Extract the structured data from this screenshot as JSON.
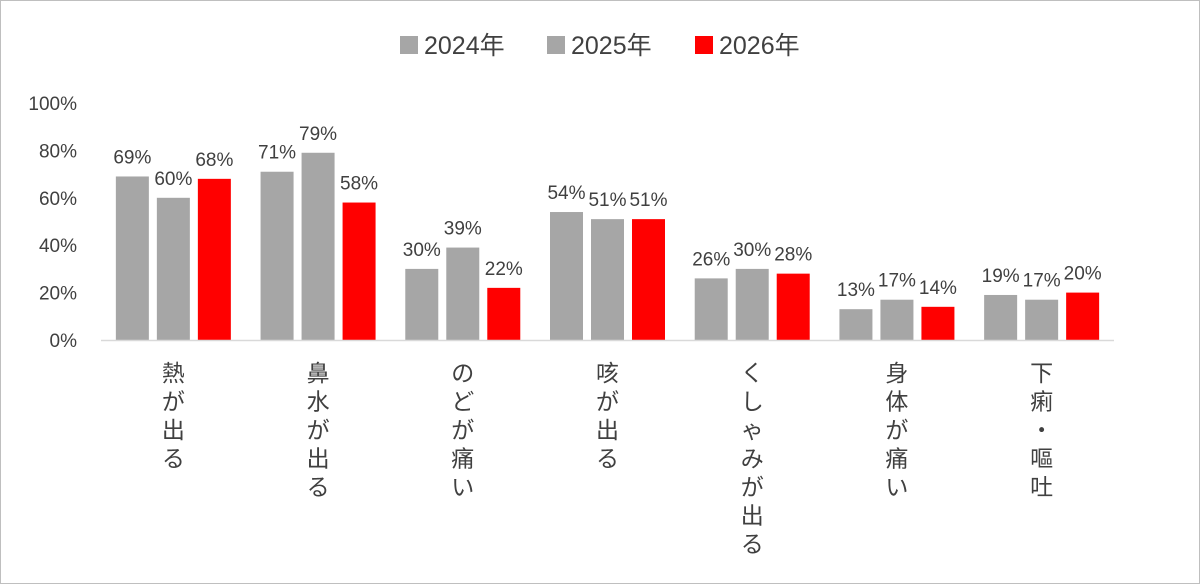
{
  "chart_data": {
    "type": "bar",
    "categories": [
      "熱が出る",
      "鼻水が出る",
      "のどが痛い",
      "咳が出る",
      "くしゃみが出る",
      "身体が痛い",
      "下痢・嘔吐"
    ],
    "series": [
      {
        "name": "2024年",
        "color": "#a6a6a6",
        "values": [
          69,
          71,
          30,
          54,
          26,
          13,
          19
        ]
      },
      {
        "name": "2025年",
        "color": "#a6a6a6",
        "values": [
          60,
          79,
          39,
          51,
          30,
          17,
          17
        ]
      },
      {
        "name": "2026年",
        "color": "#ff0000",
        "values": [
          68,
          58,
          22,
          51,
          28,
          14,
          20
        ]
      }
    ],
    "data_label_suffix": "%",
    "y_ticks": [
      "0%",
      "20%",
      "40%",
      "60%",
      "80%",
      "100%"
    ],
    "ylim": [
      0,
      100
    ],
    "grid": false,
    "legend_position": "top",
    "category_label_orientation": "vertical"
  }
}
